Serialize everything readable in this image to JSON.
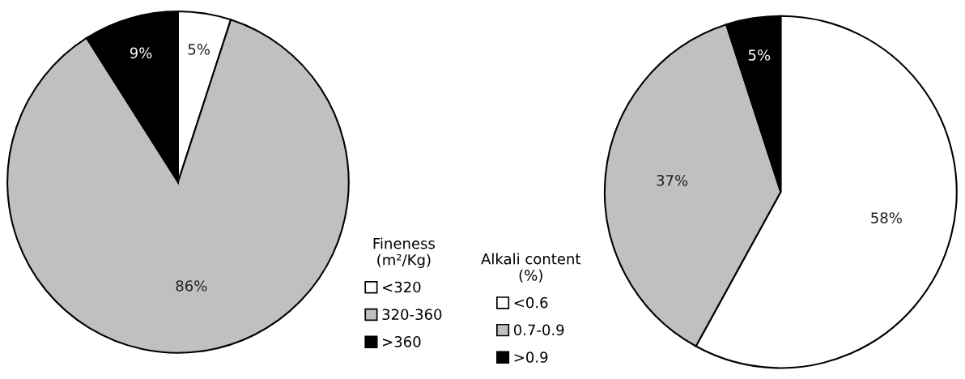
{
  "chart_data": [
    {
      "type": "pie",
      "legend_title": "Fineness\n(m²/Kg)",
      "categories": [
        "<320",
        "320-360",
        ">360"
      ],
      "values": [
        5,
        86,
        9
      ],
      "colors": [
        "#ffffff",
        "#c0c0c0",
        "#000000"
      ],
      "value_labels": [
        "5%",
        "86%",
        "9%"
      ],
      "legend": "right"
    },
    {
      "type": "pie",
      "legend_title": "Alkali content\n(%)",
      "categories": [
        "<0.6",
        "0.7-0.9",
        ">0.9"
      ],
      "values": [
        58,
        37,
        5
      ],
      "colors": [
        "#ffffff",
        "#c0c0c0",
        "#000000"
      ],
      "value_labels": [
        "58%",
        "37%",
        "5%"
      ],
      "legend": "left"
    }
  ]
}
